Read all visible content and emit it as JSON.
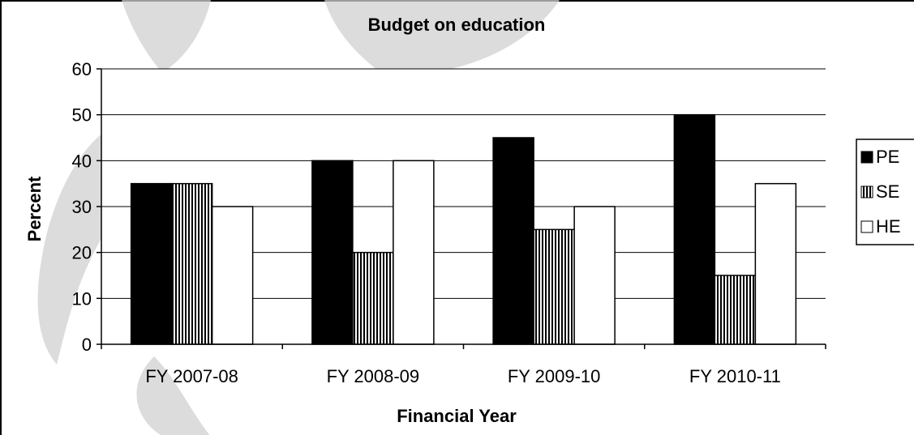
{
  "chart_data": {
    "type": "bar",
    "title": "Budget on education",
    "xlabel": "Financial Year",
    "ylabel": "Percent",
    "categories": [
      "FY 2007-08",
      "FY 2008-09",
      "FY 2009-10",
      "FY 2010-11"
    ],
    "series": [
      {
        "name": "PE",
        "values": [
          35,
          40,
          45,
          50
        ],
        "fill": "#000000",
        "pattern": "solid"
      },
      {
        "name": "SE",
        "values": [
          35,
          20,
          25,
          15
        ],
        "fill": "#ffffff",
        "pattern": "vertical-stripes"
      },
      {
        "name": "HE",
        "values": [
          30,
          40,
          30,
          35
        ],
        "fill": "#ffffff",
        "pattern": "none"
      }
    ],
    "ylim": [
      0,
      60
    ],
    "yticks": [
      0,
      10,
      20,
      30,
      40,
      50,
      60
    ],
    "grid": true,
    "legend_position": "right"
  }
}
